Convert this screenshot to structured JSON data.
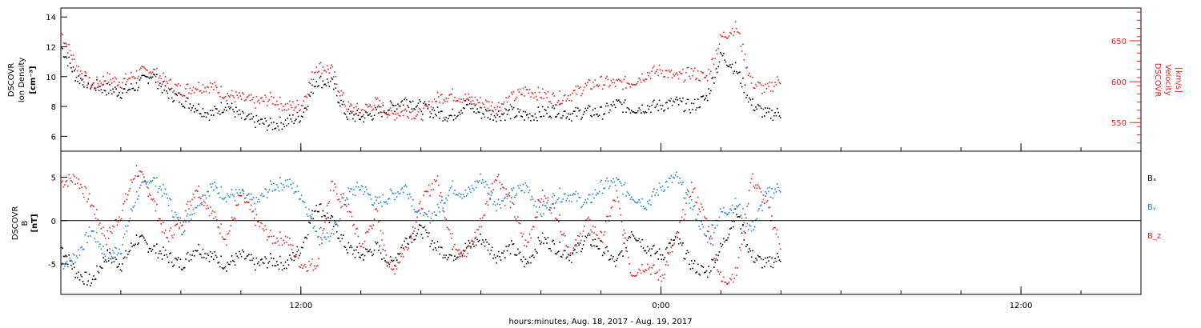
{
  "colors": {
    "black": "#000000",
    "red": "#e8201e",
    "blue": "#1b84d8"
  },
  "xaxis": {
    "title": "hours:minutes, Aug. 18, 2017 - Aug. 19, 2017",
    "range_hours": [
      -8.0,
      28.0
    ],
    "major_ticks": [
      {
        "hours": 0,
        "label": "12:00"
      },
      {
        "hours": 12,
        "label": "0:00"
      },
      {
        "hours": 24,
        "label": "12:00"
      }
    ],
    "minor_tick_step_hours": 2
  },
  "top_panel": {
    "left_label": [
      "DSCOVR",
      "Ion Density",
      "[cm⁻³]"
    ],
    "right_label": [
      "DSCOVR",
      "Velocity",
      "[km/s]"
    ],
    "left_ticks": [
      "6",
      "8",
      "10",
      "12",
      "14"
    ],
    "right_ticks": [
      "550",
      "600",
      "650"
    ]
  },
  "bottom_panel": {
    "left_label": [
      "DSCOVR",
      "B",
      "[nT]"
    ],
    "ticks": [
      "-5",
      "0",
      "5"
    ],
    "legend": [
      {
        "name": "Bₓ",
        "color": "#000000"
      },
      {
        "name": "Bᵧ",
        "color": "#1b84d8"
      },
      {
        "name": "B_z",
        "color": "#e8201e"
      }
    ]
  },
  "chart_data": [
    {
      "type": "scatter",
      "panel": "top",
      "x_unit": "hours relative to Aug. 18, 2017 12:00",
      "series": [
        {
          "axis": "left",
          "color": "#000000",
          "x": [
            -8,
            -7.5,
            -7,
            -6.5,
            -6,
            -5.5,
            -5,
            -4.5,
            -4,
            -3.5,
            -3,
            -2.5,
            -2,
            -1.5,
            -1,
            -0.5,
            0,
            0.5,
            1,
            1.5,
            2,
            2.5,
            3,
            3.5,
            4,
            4.5,
            5,
            5.5,
            6,
            6.5,
            7,
            7.5,
            8,
            8.5,
            9,
            9.5,
            10,
            10.5,
            11,
            11.5,
            12,
            12.5,
            13,
            13.5,
            14,
            14.5,
            15,
            15.5,
            16
          ],
          "y": [
            12.0,
            10.0,
            9.5,
            9.2,
            9.0,
            9.4,
            10.2,
            9.0,
            8.5,
            8.0,
            7.5,
            8.2,
            7.3,
            7.0,
            6.8,
            7.0,
            7.4,
            9.8,
            9.6,
            7.5,
            7.3,
            7.6,
            8.0,
            8.5,
            8.0,
            7.6,
            7.4,
            8.2,
            7.6,
            7.5,
            7.6,
            7.4,
            7.6,
            7.8,
            7.5,
            7.7,
            7.6,
            8.2,
            7.9,
            8.0,
            8.1,
            8.3,
            8.0,
            8.6,
            11.5,
            10.5,
            8.2,
            7.5,
            7.6
          ]
        },
        {
          "axis": "right",
          "color": "#e8201e",
          "x": [
            -8,
            -7.5,
            -7,
            -6.5,
            -6,
            -5.5,
            -5,
            -4.5,
            -4,
            -3.5,
            -3,
            -2.5,
            -2,
            -1.5,
            -1,
            -0.5,
            0,
            0.5,
            1,
            1.5,
            2,
            2.5,
            3,
            3.5,
            4,
            4.5,
            5,
            5.5,
            6,
            6.5,
            7,
            7.5,
            8,
            8.5,
            9,
            9.5,
            10,
            10.5,
            11,
            11.5,
            12,
            12.5,
            13,
            13.5,
            14,
            14.5,
            15,
            15.5,
            16
          ],
          "y": [
            660,
            620,
            595,
            605,
            600,
            610,
            615,
            600,
            590,
            595,
            595,
            585,
            580,
            575,
            580,
            570,
            572,
            620,
            615,
            570,
            565,
            575,
            560,
            565,
            560,
            580,
            585,
            580,
            575,
            570,
            580,
            590,
            585,
            580,
            585,
            595,
            600,
            598,
            600,
            610,
            615,
            605,
            612,
            605,
            655,
            668,
            600,
            590,
            605
          ]
        }
      ],
      "left_ylim": [
        5,
        14.6
      ],
      "right_ylim": [
        515,
        690
      ]
    },
    {
      "type": "scatter",
      "panel": "bottom",
      "x_unit": "hours relative to Aug. 18, 2017 12:00",
      "ylim": [
        -8.5,
        8
      ],
      "series": [
        {
          "name": "Bₓ",
          "color": "#000000",
          "x": [
            -8,
            -7.5,
            -7,
            -6.5,
            -6,
            -5.5,
            -5,
            -4.5,
            -4,
            -3.5,
            -3,
            -2.5,
            -2,
            -1.5,
            -1,
            -0.5,
            0,
            0.5,
            1,
            1.5,
            2,
            2.5,
            3,
            3.5,
            4,
            4.5,
            5,
            5.5,
            6,
            6.5,
            7,
            7.5,
            8,
            8.5,
            9,
            9.5,
            10,
            10.5,
            11,
            11.5,
            12,
            12.5,
            13,
            13.5,
            14,
            14.5,
            15,
            15.5,
            16
          ],
          "y": [
            -3,
            -6,
            -7,
            -4,
            -5,
            -2,
            -3,
            -4,
            -5,
            -3,
            -4,
            -5,
            -4,
            -5,
            -4.5,
            -5,
            -3,
            2,
            0,
            -3,
            -4,
            -3,
            -5,
            -2,
            -1,
            -3,
            -4,
            -3,
            -2,
            -4,
            -3,
            -5,
            -2,
            -3,
            -4,
            -2,
            -3,
            -5,
            -1,
            -3,
            -4,
            -2,
            -5,
            -6,
            -3,
            1,
            -4,
            -5,
            -4
          ]
        },
        {
          "name": "Bᵧ",
          "color": "#1b84d8",
          "x": [
            -8,
            -7.5,
            -7,
            -6.5,
            -6,
            -5.5,
            -5,
            -4.5,
            -4,
            -3.5,
            -3,
            -2.5,
            -2,
            -1.5,
            -1,
            -0.5,
            0,
            0.5,
            1,
            1.5,
            2,
            2.5,
            3,
            3.5,
            4,
            4.5,
            5,
            5.5,
            6,
            6.5,
            7,
            7.5,
            8,
            8.5,
            9,
            9.5,
            10,
            10.5,
            11,
            11.5,
            12,
            12.5,
            13,
            13.5,
            14,
            14.5,
            15,
            15.5,
            16
          ],
          "y": [
            -5,
            -4,
            -1,
            -4,
            -3,
            3,
            5,
            3,
            -1,
            2,
            4,
            3,
            3,
            2,
            4,
            4.5,
            3,
            -1,
            -2,
            3,
            4,
            2,
            3,
            4,
            0,
            1,
            4,
            3,
            5,
            2,
            3,
            4,
            1,
            3,
            3,
            2,
            4,
            4.5,
            3,
            2,
            4,
            5,
            2,
            -2,
            1,
            2,
            -1,
            3,
            4
          ]
        },
        {
          "name": "B_z",
          "color": "#e8201e",
          "x": [
            -8,
            -7.5,
            -7,
            -6.5,
            -6,
            -5.5,
            -5,
            -4.5,
            -4,
            -3.5,
            -3,
            -2.5,
            -2,
            -1.5,
            -1,
            -0.5,
            0,
            0.5,
            1,
            1.5,
            2,
            2.5,
            3,
            3.5,
            4,
            4.5,
            5,
            5.5,
            6,
            6.5,
            7,
            7.5,
            8,
            8.5,
            9,
            9.5,
            10,
            10.5,
            11,
            11.5,
            12,
            12.5,
            13,
            13.5,
            14,
            14.5,
            15,
            15.5,
            16
          ],
          "y": [
            4.5,
            5,
            2,
            -2,
            1,
            6,
            3,
            -2,
            0,
            4,
            1,
            -2,
            3,
            0,
            -2,
            -2,
            -5,
            -5,
            4,
            2,
            -3,
            1,
            -6,
            -3,
            2,
            5,
            -2,
            -4,
            0,
            5.5,
            2,
            -3,
            3,
            1,
            -4,
            0,
            -2,
            3,
            -6,
            -5,
            -6.5,
            -2,
            4,
            0,
            -7,
            -6,
            5,
            2,
            -3
          ]
        }
      ]
    }
  ]
}
